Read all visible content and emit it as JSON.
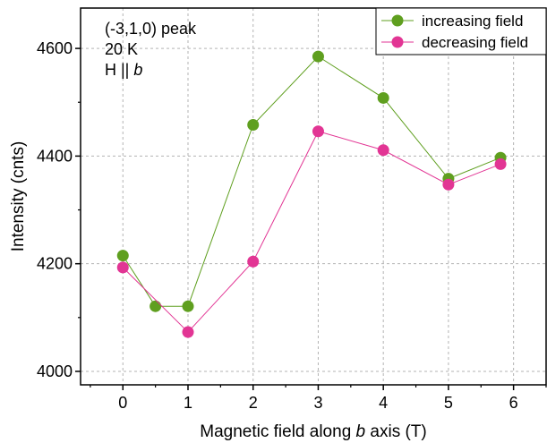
{
  "chart_data": {
    "type": "line",
    "xlabel": "Magnetic field along b axis (T)",
    "xlabel_parts": [
      "Magnetic field along ",
      "b",
      " axis (T)"
    ],
    "ylabel": "Intensity (cnts)",
    "xlim": [
      -0.65,
      6.5
    ],
    "ylim": [
      3975,
      4675
    ],
    "xticks": [
      0,
      1,
      2,
      3,
      4,
      5,
      6
    ],
    "yticks": [
      4000,
      4200,
      4400,
      4600
    ],
    "grid": true,
    "legend_position": "top-right",
    "annotations": [
      {
        "parts": [
          "(-3,1,0) peak"
        ]
      },
      {
        "parts": [
          "20 K"
        ]
      },
      {
        "parts": [
          "H || ",
          "b"
        ]
      }
    ],
    "series": [
      {
        "name": "increasing field",
        "color": "#5f9f1f",
        "x": [
          0,
          0.5,
          1,
          2,
          3,
          4,
          5,
          5.8
        ],
        "y": [
          4215,
          4121,
          4121,
          4458,
          4585,
          4508,
          4358,
          4397
        ]
      },
      {
        "name": "decreasing field",
        "color": "#e23594",
        "x": [
          0,
          1,
          2,
          3,
          4,
          5,
          5.8
        ],
        "y": [
          4193,
          4073,
          4204,
          4446,
          4411,
          4347,
          4385
        ]
      }
    ]
  }
}
